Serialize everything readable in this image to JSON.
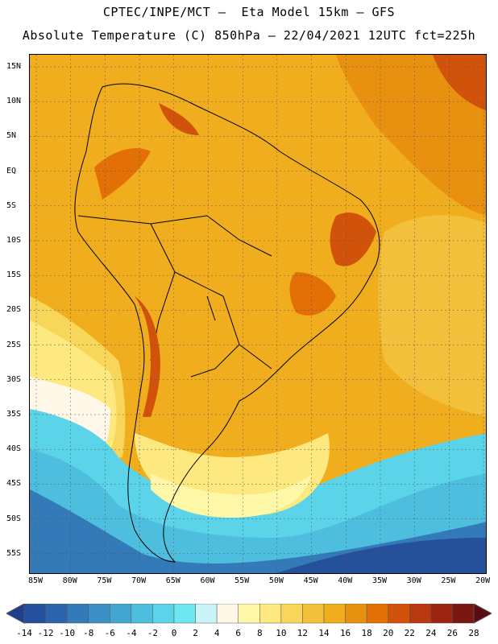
{
  "title_line1": "CPTEC/INPE/MCT –  Eta Model 15km – GFS",
  "title_line2": "Absolute Temperature (C) 850hPa – 22/04/2021 12UTC fct=225h",
  "lat_labels": [
    "15N",
    "10N",
    "5N",
    "EQ",
    "5S",
    "10S",
    "15S",
    "20S",
    "25S",
    "30S",
    "35S",
    "40S",
    "45S",
    "50S",
    "55S"
  ],
  "lon_labels": [
    "85W",
    "80W",
    "75W",
    "70W",
    "65W",
    "60W",
    "55W",
    "50W",
    "45W",
    "40W",
    "35W",
    "30W",
    "25W",
    "20W"
  ],
  "colorbar": {
    "levels": [
      "-14",
      "-12",
      "-10",
      "-8",
      "-6",
      "-4",
      "-2",
      "0",
      "2",
      "4",
      "6",
      "8",
      "10",
      "12",
      "14",
      "16",
      "18",
      "20",
      "22",
      "24",
      "26",
      "28"
    ],
    "colors": [
      "#1e3f8f",
      "#24509c",
      "#2b64ab",
      "#3479b8",
      "#3b8fc5",
      "#43a6d1",
      "#4dbedd",
      "#5bd3e8",
      "#6de7f0",
      "#c9f4f8",
      "#fff8e8",
      "#fff7a8",
      "#fde97f",
      "#f8d65a",
      "#f3c03b",
      "#f0ad1d",
      "#e8900f",
      "#e27007",
      "#d1520a",
      "#b8380f",
      "#9b2412",
      "#7b1713",
      "#5a0c10"
    ]
  },
  "map": {
    "ocean_base": "#f0ad1d",
    "features": [
      {
        "name": "warm-sea-north",
        "color": "#e8900f"
      },
      {
        "name": "hot-core-northeast-atlantic",
        "color": "#d1520a"
      },
      {
        "name": "yellow-band-pacific",
        "color": "#f8d65a"
      },
      {
        "name": "cream-band-pacific",
        "color": "#fff8e8"
      },
      {
        "name": "cold-ocean-south",
        "color": "#4dbedd"
      },
      {
        "name": "deep-cold-ocean",
        "color": "#2b64ab"
      }
    ]
  }
}
